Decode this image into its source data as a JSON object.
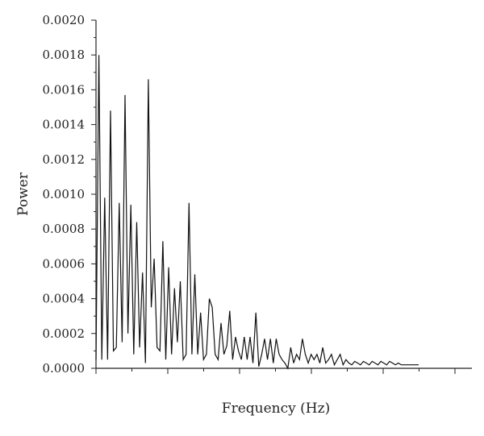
{
  "chart_data": {
    "type": "line",
    "title": "",
    "xlabel": "Frequency (Hz)",
    "ylabel": "Power",
    "ylim": [
      0,
      0.002
    ],
    "yticks": [
      0.0,
      0.0002,
      0.0004,
      0.0006,
      0.0008,
      0.001,
      0.0012,
      0.0014,
      0.0016,
      0.0018,
      0.002
    ],
    "ytick_labels": [
      "0.0000",
      "0.0002",
      "0.0004",
      "0.0006",
      "0.0008",
      "0.0010",
      "0.0012",
      "0.0014",
      "0.0016",
      "0.0018",
      "0.0020"
    ],
    "xtick_labels_shown": false,
    "x_major_tick_count": 6,
    "x_minor_per_major": 2,
    "grid": false,
    "series": [
      {
        "color": "#111111",
        "values": [
          5e-05,
          0.0018,
          5e-05,
          0.00098,
          5e-05,
          0.00148,
          0.0001,
          0.00012,
          0.00095,
          0.00015,
          0.00157,
          0.0002,
          0.00094,
          8e-05,
          0.00084,
          0.00012,
          0.00055,
          3e-05,
          0.00166,
          0.00035,
          0.00063,
          0.00012,
          0.0001,
          0.00073,
          5e-05,
          0.00058,
          8e-05,
          0.00046,
          0.00015,
          0.0005,
          5e-05,
          8e-05,
          0.00095,
          8e-05,
          0.00054,
          8e-05,
          0.00032,
          5e-05,
          8e-05,
          0.0004,
          0.00035,
          8e-05,
          5e-05,
          0.00026,
          8e-05,
          0.00013,
          0.00033,
          5e-05,
          0.00018,
          0.0001,
          5e-05,
          0.00018,
          5e-05,
          0.00018,
          3e-05,
          0.00032,
          1e-05,
          8e-05,
          0.00017,
          5e-05,
          0.00017,
          3e-05,
          0.00017,
          8e-05,
          5e-05,
          3e-05,
          0.0,
          0.00012,
          3e-05,
          8e-05,
          5e-05,
          0.00017,
          8e-05,
          3e-05,
          8e-05,
          5e-05,
          8e-05,
          3e-05,
          0.00012,
          3e-05,
          5e-05,
          8e-05,
          2e-05,
          5e-05,
          8e-05,
          2e-05,
          5e-05,
          3e-05,
          2e-05,
          4e-05,
          3e-05,
          2e-05,
          4e-05,
          3e-05,
          2e-05,
          4e-05,
          3e-05,
          2e-05,
          4e-05,
          3e-05,
          2e-05,
          4e-05,
          3e-05,
          2e-05,
          3e-05,
          2e-05,
          2e-05,
          2e-05,
          2e-05,
          2e-05,
          2e-05,
          2e-05
        ]
      }
    ]
  }
}
